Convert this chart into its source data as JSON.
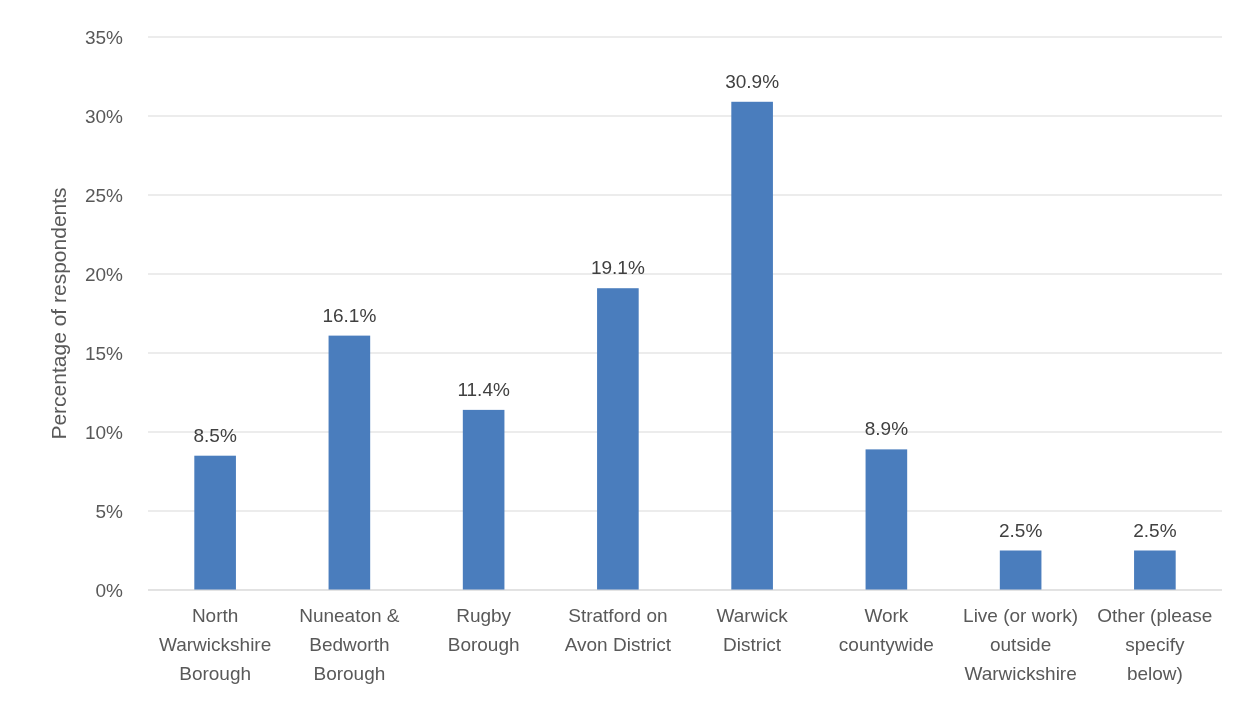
{
  "chart_data": {
    "type": "bar",
    "ylabel": "Percentage of respondents",
    "categories": [
      "North Warwickshire Borough",
      "Nuneaton & Bedworth Borough",
      "Rugby Borough",
      "Stratford on Avon District",
      "Warwick District",
      "Work countywide",
      "Live (or work) outside Warwickshire",
      "Other (please specify below)"
    ],
    "values": [
      8.5,
      16.1,
      11.4,
      19.1,
      30.9,
      8.9,
      2.5,
      2.5
    ],
    "value_labels": [
      "8.5%",
      "16.1%",
      "11.4%",
      "19.1%",
      "30.9%",
      "8.9%",
      "2.5%",
      "2.5%"
    ],
    "color": "#4a7dbd",
    "ylim": [
      0,
      35
    ],
    "yticks": [
      {
        "value": 0,
        "label": "0%"
      },
      {
        "value": 5,
        "label": "5%"
      },
      {
        "value": 10,
        "label": "10%"
      },
      {
        "value": 15,
        "label": "15%"
      },
      {
        "value": 20,
        "label": "20%"
      },
      {
        "value": 25,
        "label": "25%"
      },
      {
        "value": 30,
        "label": "30%"
      },
      {
        "value": 35,
        "label": "35%"
      }
    ],
    "grid": "y"
  }
}
